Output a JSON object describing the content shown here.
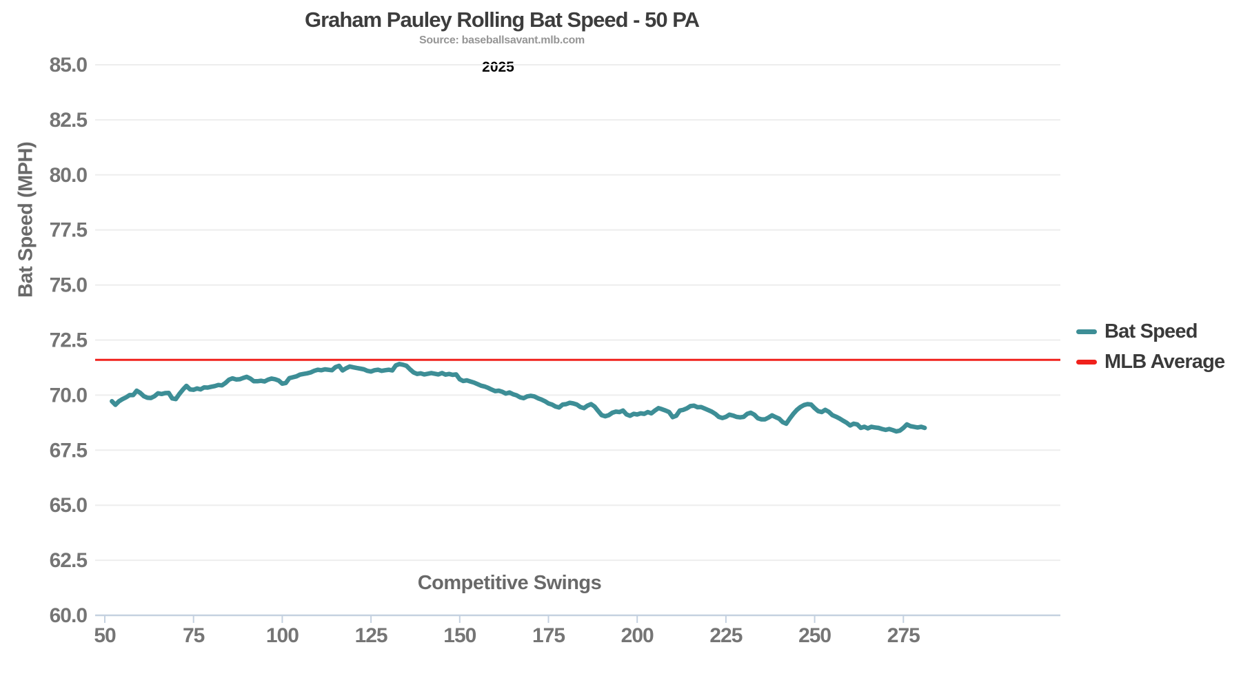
{
  "chart": {
    "title": "Graham Pauley Rolling Bat Speed - 50 PA",
    "subtitle": "Source: baseballsavant.mlb.com",
    "annotation": "2025",
    "x_axis_title": "Competitive Swings",
    "y_axis_title": "Bat Speed (MPH)"
  },
  "legend": {
    "items": [
      {
        "label": "Bat Speed",
        "color": "#3D8E96"
      },
      {
        "label": "MLB Average",
        "color": "#F0211C"
      }
    ]
  },
  "colors": {
    "bat_speed_line": "#3D8E96",
    "mlb_average_line": "#F0211C",
    "title_text": "#3D3D3D",
    "subtitle_text": "#969696",
    "annotation_text": "#000000",
    "tick_label": "#757575",
    "axis_title": "#696969",
    "legend_text": "#3A3A3A",
    "gridline": "#EDEDED",
    "axis_line": "#C4D1E0",
    "background": "#FFFFFF"
  },
  "chart_data": {
    "type": "line",
    "title": "Graham Pauley Rolling Bat Speed - 50 PA",
    "subtitle": "Source: baseballsavant.mlb.com",
    "annotation": "2025",
    "xlabel": "Competitive Swings",
    "ylabel": "Bat Speed (MPH)",
    "xlim": [
      47,
      319
    ],
    "ylim": [
      60,
      85
    ],
    "grid": "horizontal",
    "legend_position": "right-outside",
    "x_ticks": [
      50,
      75,
      100,
      125,
      150,
      175,
      200,
      225,
      250,
      275
    ],
    "y_ticks": [
      85,
      82.5,
      80,
      77.5,
      75,
      72.5,
      70,
      67.5,
      65,
      62.5,
      60
    ],
    "y_tick_labels": [
      "85.0",
      "82.5",
      "80.0",
      "77.5",
      "75.0",
      "72.5",
      "70.0",
      "67.5",
      "65.0",
      "62.5",
      "60.0"
    ],
    "series": [
      {
        "name": "Bat Speed",
        "type": "line",
        "color": "#3D8E96",
        "x_start": 52,
        "x_step": 1,
        "values": [
          69.72,
          69.56,
          69.72,
          69.82,
          69.9,
          70.0,
          70.0,
          70.2,
          70.1,
          69.95,
          69.88,
          69.87,
          69.95,
          70.08,
          70.05,
          70.09,
          70.1,
          69.85,
          69.82,
          70.05,
          70.25,
          70.42,
          70.26,
          70.24,
          70.3,
          70.26,
          70.35,
          70.34,
          70.38,
          70.41,
          70.46,
          70.44,
          70.55,
          70.7,
          70.76,
          70.71,
          70.72,
          70.78,
          70.83,
          70.75,
          70.63,
          70.63,
          70.65,
          70.62,
          70.7,
          70.75,
          70.72,
          70.66,
          70.52,
          70.55,
          70.77,
          70.81,
          70.85,
          70.93,
          70.96,
          70.99,
          71.03,
          71.1,
          71.15,
          71.13,
          71.17,
          71.15,
          71.13,
          71.27,
          71.33,
          71.12,
          71.22,
          71.3,
          71.26,
          71.23,
          71.2,
          71.17,
          71.1,
          71.07,
          71.13,
          71.15,
          71.1,
          71.13,
          71.15,
          71.12,
          71.35,
          71.41,
          71.38,
          71.33,
          71.17,
          71.03,
          70.96,
          70.99,
          70.94,
          70.97,
          71.0,
          70.97,
          70.94,
          71.0,
          70.93,
          70.96,
          70.92,
          70.94,
          70.72,
          70.64,
          70.67,
          70.62,
          70.57,
          70.5,
          70.43,
          70.39,
          70.33,
          70.25,
          70.18,
          70.2,
          70.15,
          70.07,
          70.12,
          70.04,
          69.99,
          69.9,
          69.86,
          69.94,
          69.97,
          69.94,
          69.86,
          69.8,
          69.72,
          69.62,
          69.57,
          69.48,
          69.44,
          69.57,
          69.59,
          69.65,
          69.62,
          69.57,
          69.46,
          69.41,
          69.52,
          69.59,
          69.48,
          69.28,
          69.09,
          69.04,
          69.09,
          69.2,
          69.25,
          69.23,
          69.3,
          69.12,
          69.06,
          69.15,
          69.12,
          69.17,
          69.15,
          69.23,
          69.17,
          69.3,
          69.41,
          69.36,
          69.3,
          69.23,
          69.0,
          69.06,
          69.3,
          69.33,
          69.4,
          69.5,
          69.52,
          69.45,
          69.46,
          69.39,
          69.32,
          69.25,
          69.15,
          69.01,
          68.96,
          69.01,
          69.11,
          69.07,
          69.01,
          68.99,
          69.01,
          69.15,
          69.2,
          69.11,
          68.95,
          68.9,
          68.9,
          68.98,
          69.08,
          69.0,
          68.93,
          68.77,
          68.7,
          68.94,
          69.15,
          69.33,
          69.46,
          69.55,
          69.59,
          69.57,
          69.41,
          69.27,
          69.23,
          69.33,
          69.24,
          69.09,
          69.02,
          68.94,
          68.84,
          68.75,
          68.62,
          68.7,
          68.67,
          68.51,
          68.56,
          68.49,
          68.56,
          68.53,
          68.51,
          68.46,
          68.42,
          68.46,
          68.41,
          68.35,
          68.39,
          68.51,
          68.67,
          68.59,
          68.56,
          68.53,
          68.56,
          68.51
        ]
      },
      {
        "name": "MLB Average",
        "type": "hline",
        "color": "#F0211C",
        "value": 71.6
      }
    ]
  }
}
